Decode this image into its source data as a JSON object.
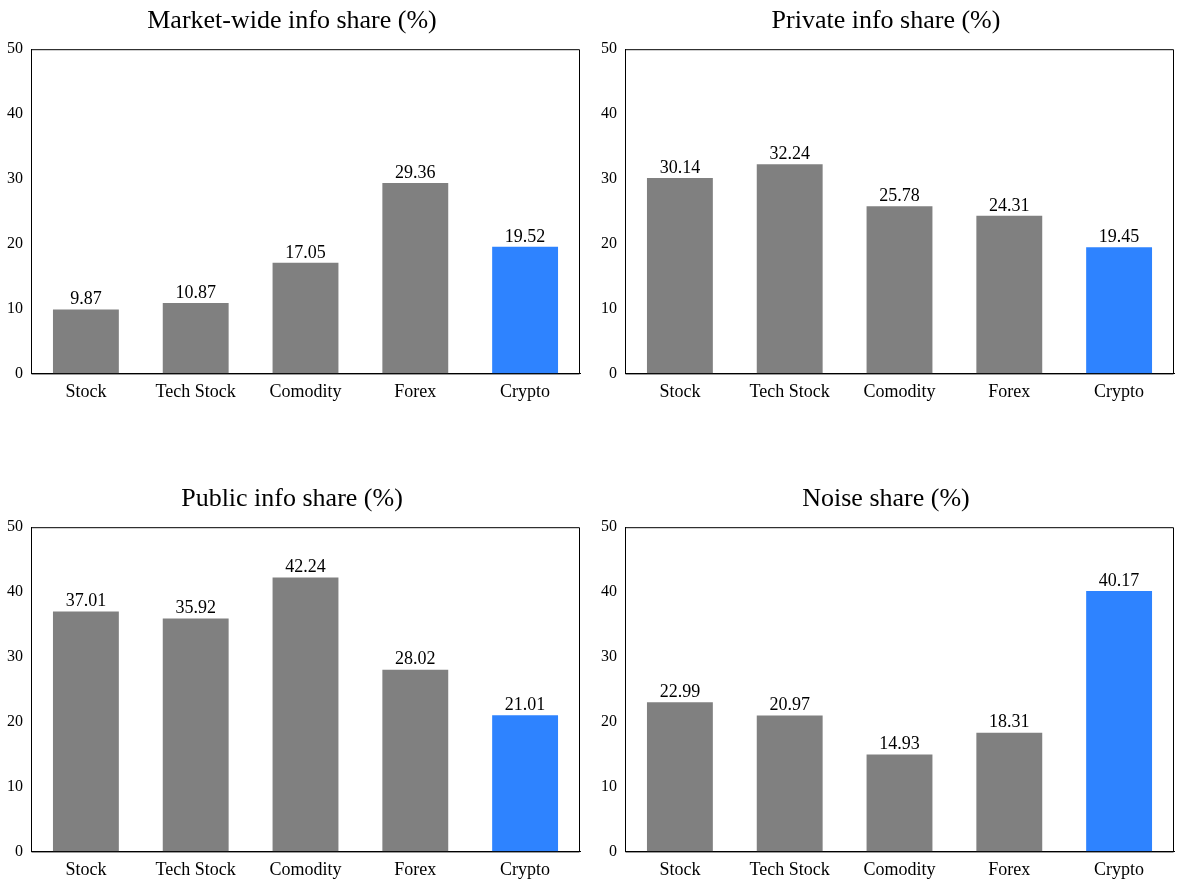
{
  "chart_data": [
    {
      "type": "bar",
      "title": "Market-wide info share (%)",
      "categories": [
        "Stock",
        "Tech Stock",
        "Comodity",
        "Forex",
        "Crypto"
      ],
      "values": [
        9.87,
        10.87,
        17.05,
        29.36,
        19.52
      ],
      "colors": [
        "#808080",
        "#808080",
        "#808080",
        "#808080",
        "#2e83ff"
      ],
      "ylim": [
        0,
        50
      ],
      "yticks": [
        0,
        10,
        20,
        30,
        40,
        50
      ],
      "data_labels": true
    },
    {
      "type": "bar",
      "title": "Private info share (%)",
      "categories": [
        "Stock",
        "Tech Stock",
        "Comodity",
        "Forex",
        "Crypto"
      ],
      "values": [
        30.14,
        32.24,
        25.78,
        24.31,
        19.45
      ],
      "colors": [
        "#808080",
        "#808080",
        "#808080",
        "#808080",
        "#2e83ff"
      ],
      "ylim": [
        0,
        50
      ],
      "yticks": [
        0,
        10,
        20,
        30,
        40,
        50
      ],
      "data_labels": true
    },
    {
      "type": "bar",
      "title": "Public info share (%)",
      "categories": [
        "Stock",
        "Tech Stock",
        "Comodity",
        "Forex",
        "Crypto"
      ],
      "values": [
        37.01,
        35.92,
        42.24,
        28.02,
        21.01
      ],
      "colors": [
        "#808080",
        "#808080",
        "#808080",
        "#808080",
        "#2e83ff"
      ],
      "ylim": [
        0,
        50
      ],
      "yticks": [
        0,
        10,
        20,
        30,
        40,
        50
      ],
      "data_labels": true
    },
    {
      "type": "bar",
      "title": "Noise share (%)",
      "categories": [
        "Stock",
        "Tech Stock",
        "Comodity",
        "Forex",
        "Crypto"
      ],
      "values": [
        22.99,
        20.97,
        14.93,
        18.31,
        40.17
      ],
      "colors": [
        "#808080",
        "#808080",
        "#808080",
        "#808080",
        "#2e83ff"
      ],
      "ylim": [
        0,
        50
      ],
      "yticks": [
        0,
        10,
        20,
        30,
        40,
        50
      ],
      "data_labels": true
    }
  ]
}
